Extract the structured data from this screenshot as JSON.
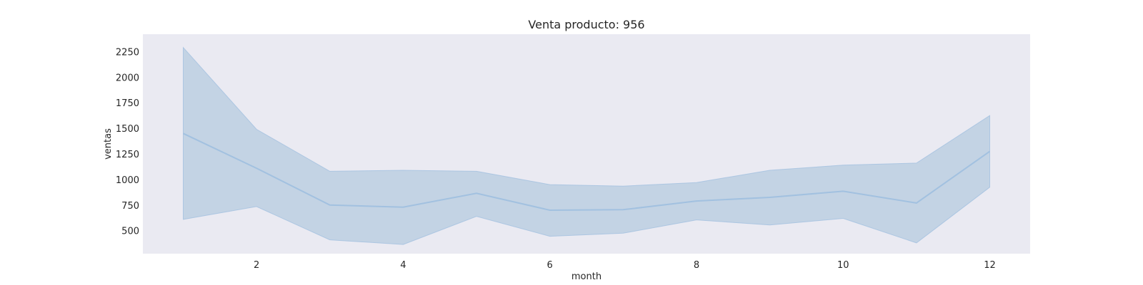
{
  "chart_data": {
    "type": "line",
    "title": "Venta producto: 956",
    "xlabel": "month",
    "ylabel": "ventas",
    "x": [
      1,
      2,
      3,
      4,
      5,
      6,
      7,
      8,
      9,
      10,
      11,
      12
    ],
    "series": [
      {
        "values": [
          1450,
          1110,
          750,
          730,
          865,
          700,
          705,
          790,
          825,
          885,
          770,
          1275
        ],
        "ci_upper": [
          2290,
          1490,
          1080,
          1090,
          1080,
          950,
          935,
          970,
          1090,
          1140,
          1160,
          1625
        ],
        "ci_lower": [
          610,
          735,
          410,
          365,
          640,
          445,
          475,
          605,
          555,
          620,
          380,
          925
        ]
      }
    ],
    "xticks": [
      2,
      4,
      6,
      8,
      10,
      12
    ],
    "yticks": [
      500,
      750,
      1000,
      1250,
      1500,
      1750,
      2000,
      2250
    ],
    "xlim": [
      0.45,
      12.55
    ],
    "ylim": [
      275,
      2420
    ],
    "grid": false,
    "colors": {
      "line": "#a2c1e0",
      "band": "#c3d3e4",
      "plot_bg": "#eaeaf2"
    }
  }
}
